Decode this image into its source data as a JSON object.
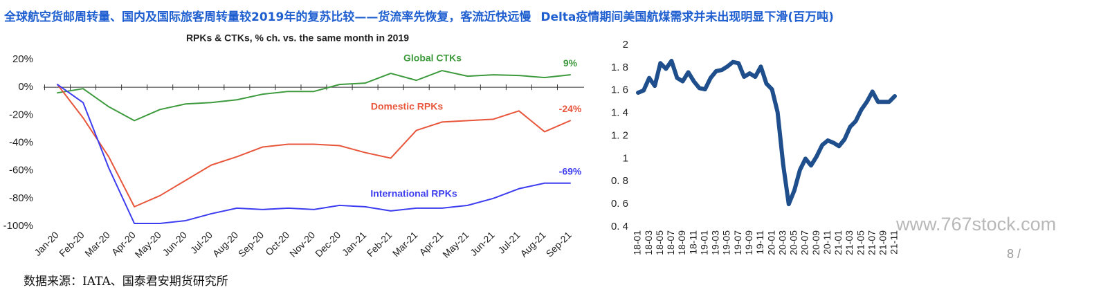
{
  "header": {
    "left": "全球航空货邮周转量、国内及国际旅客周转量较2019年的复苏比较——货流率先恢复，客流近快远慢",
    "right": "Delta疫情期间美国航煤需求并未出现明显下滑(百万吨)"
  },
  "footer": {
    "source": "数据来源：IATA、国泰君安期货研究所",
    "watermark": "www.767stock.com",
    "page": "8 /"
  },
  "chart_data": [
    {
      "type": "line",
      "title": "RPKs & CTKs, % ch. vs. the same month in 2019",
      "categories": [
        "Jan-20",
        "Feb-20",
        "Mar-20",
        "Apr-20",
        "May-20",
        "Jun-20",
        "Jul-20",
        "Aug-20",
        "Sep-20",
        "Oct-20",
        "Nov-20",
        "Dec-20",
        "Jan-21",
        "Feb-21",
        "Mar-21",
        "Apr-21",
        "May-21",
        "Jun-21",
        "Jul-21",
        "Aug-21",
        "Sep-21"
      ],
      "series": [
        {
          "name": "Global CTKs",
          "color": "#3c9a3c",
          "values": [
            -4,
            -1,
            -14,
            -24,
            -16,
            -12,
            -11,
            -9,
            -5,
            -3,
            -3,
            2,
            3,
            10,
            5,
            12,
            8,
            9,
            8.5,
            7,
            9
          ],
          "value_labels": [
            null,
            null,
            null,
            null,
            null,
            null,
            null,
            null,
            null,
            null,
            null,
            null,
            null,
            null,
            null,
            null,
            null,
            null,
            null,
            null,
            "9%"
          ]
        },
        {
          "name": "Domestic RPKs",
          "color": "#e8553a",
          "values": [
            2,
            -22,
            -50,
            -86,
            -78,
            -67,
            -56,
            -50,
            -43,
            -41,
            -41,
            -42,
            -47,
            -51,
            -31,
            -25,
            -24,
            -23,
            -17,
            -32,
            -24
          ],
          "value_labels": [
            null,
            null,
            null,
            null,
            null,
            null,
            null,
            null,
            null,
            null,
            null,
            null,
            null,
            null,
            null,
            null,
            null,
            null,
            null,
            null,
            "-24%"
          ]
        },
        {
          "name": "International RPKs",
          "color": "#3c3cf0",
          "values": [
            2,
            -11,
            -58,
            -98,
            -98,
            -96,
            -91,
            -87,
            -88,
            -87,
            -88,
            -85,
            -86,
            -89,
            -87,
            -87,
            -85,
            -80,
            -73,
            -69,
            -69
          ],
          "value_labels": [
            null,
            null,
            null,
            null,
            null,
            null,
            null,
            null,
            null,
            null,
            null,
            null,
            null,
            null,
            null,
            null,
            null,
            null,
            null,
            null,
            "-69%"
          ]
        }
      ],
      "ylim": [
        -100,
        20
      ],
      "yticks": [
        {
          "value": 20,
          "label": "20%"
        },
        {
          "value": 0,
          "label": "0%"
        },
        {
          "value": -20,
          "label": "-20%"
        },
        {
          "value": -40,
          "label": "-40%"
        },
        {
          "value": -60,
          "label": "-60%"
        },
        {
          "value": -80,
          "label": "-80%"
        },
        {
          "value": -100,
          "label": "-100%"
        }
      ]
    },
    {
      "type": "line",
      "categories": [
        "18-01",
        null,
        "18-03",
        null,
        "18-05",
        null,
        "18-07",
        null,
        "18-09",
        null,
        "18-11",
        null,
        "19-01",
        null,
        "19-03",
        null,
        "19-05",
        null,
        "19-07",
        null,
        "19-09",
        null,
        "19-11",
        null,
        "20-01",
        null,
        "20-03",
        null,
        "20-05",
        null,
        "20-07",
        null,
        "20-09",
        null,
        "20-11",
        null,
        "21-01",
        null,
        "21-03",
        null,
        "21-05",
        null,
        "21-07",
        null,
        "21-09",
        null,
        "21-11"
      ],
      "series": [
        {
          "color": "#1f4e8c",
          "values": [
            1.58,
            1.6,
            1.71,
            1.64,
            1.84,
            1.79,
            1.86,
            1.71,
            1.68,
            1.76,
            1.68,
            1.62,
            1.61,
            1.71,
            1.77,
            1.78,
            1.81,
            1.85,
            1.84,
            1.72,
            1.75,
            1.72,
            1.81,
            1.66,
            1.61,
            1.41,
            0.95,
            0.6,
            0.72,
            0.9,
            1.0,
            0.94,
            1.02,
            1.12,
            1.16,
            1.14,
            1.11,
            1.17,
            1.28,
            1.33,
            1.43,
            1.5,
            1.59,
            1.5,
            1.5,
            1.5,
            1.55
          ]
        }
      ],
      "ylim": [
        0.4,
        2
      ],
      "yticks": [
        {
          "value": 0.4,
          "label": "0. 4"
        },
        {
          "value": 0.6,
          "label": "0. 6"
        },
        {
          "value": 0.8,
          "label": "0. 8"
        },
        1,
        {
          "value": 1.2,
          "label": "1. 2"
        },
        {
          "value": 1.4,
          "label": "1. 4"
        },
        {
          "value": 1.6,
          "label": "1. 6"
        },
        {
          "value": 1.8,
          "label": "1. 8"
        },
        2
      ]
    }
  ]
}
